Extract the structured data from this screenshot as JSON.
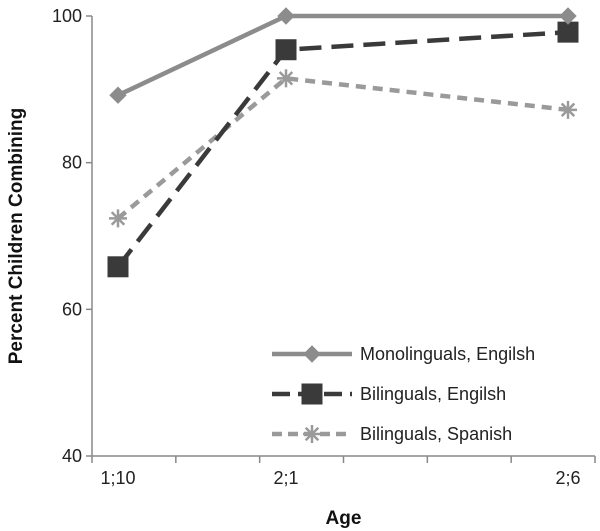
{
  "chart_data": {
    "type": "line",
    "title": "",
    "xlabel": "Age",
    "ylabel": "Percent Children Combining",
    "categories": [
      "1;10",
      "2;1",
      "2;6"
    ],
    "ylim": [
      40,
      100
    ],
    "yticks": [
      40,
      60,
      80,
      100
    ],
    "grid": false,
    "legend_position": "bottom-right",
    "series": [
      {
        "name": "Monolinguals, Engilsh",
        "values": [
          89.2,
          100,
          100
        ],
        "color": "#8c8c8c",
        "dash": "solid",
        "marker": "diamond"
      },
      {
        "name": "Bilinguals, Engilsh",
        "values": [
          65.8,
          95.4,
          97.8
        ],
        "color": "#3a3a3a",
        "dash": "long-dash",
        "marker": "square"
      },
      {
        "name": "Bilinguals, Spanish",
        "values": [
          72.4,
          91.5,
          87.2
        ],
        "color": "#9a9a9a",
        "dash": "short-dash",
        "marker": "star"
      }
    ]
  }
}
